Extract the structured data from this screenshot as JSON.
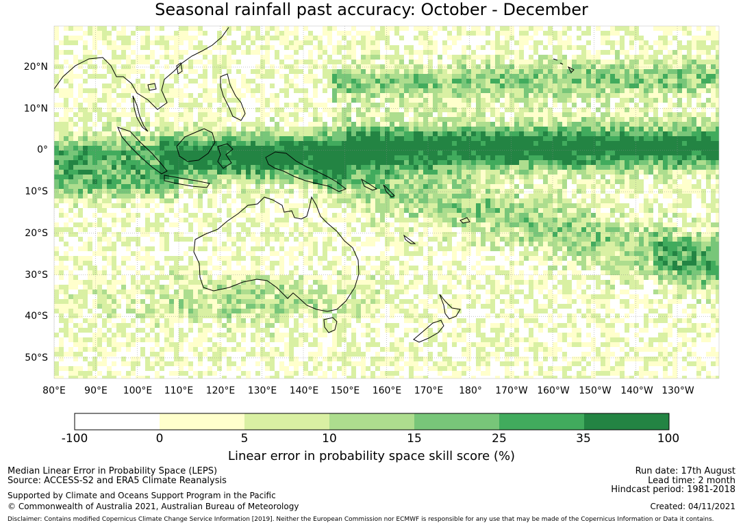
{
  "title": "Seasonal rainfall past accuracy: October - December",
  "map": {
    "lat_labels": [
      "20°N",
      "10°N",
      "0°",
      "10°S",
      "20°S",
      "30°S",
      "40°S",
      "50°S"
    ],
    "lon_labels": [
      "80°E",
      "90°E",
      "100°E",
      "110°E",
      "120°E",
      "130°E",
      "140°E",
      "150°E",
      "160°E",
      "170°E",
      "180°",
      "170°W",
      "160°W",
      "150°W",
      "140°W",
      "130°W"
    ]
  },
  "colorbar": {
    "ticks": [
      "-100",
      "0",
      "5",
      "10",
      "15",
      "25",
      "35",
      "100"
    ],
    "colors": [
      "#ffffff",
      "#ffffcc",
      "#d9f0a3",
      "#addd8e",
      "#78c679",
      "#41ab5d",
      "#238443"
    ],
    "label": "Linear error in probability space skill score (%)"
  },
  "footer": {
    "line1": "Median Linear Error in Probability Space (LEPS)",
    "line2": "Source: ACCESS-S2 and ERA5 Climate Reanalysis",
    "line3": "Supported by Climate and Oceans Support Program in the Pacific",
    "line4": "© Commonwealth of Australia 2021, Australian Bureau of Meteorology",
    "run_date": "Run date: 17th August",
    "lead_time": "Lead time: 2 month",
    "hindcast": "Hindcast period: 1981-2018",
    "created": "Created: 04/11/2021",
    "disclaimer": "Disclaimer: Contains modified Copernicus Climate Change Service Information [2019]. Neither the European Commission nor ECMWF is responsible for any use that may be made of the Copernicus Information or Data it contains."
  }
}
